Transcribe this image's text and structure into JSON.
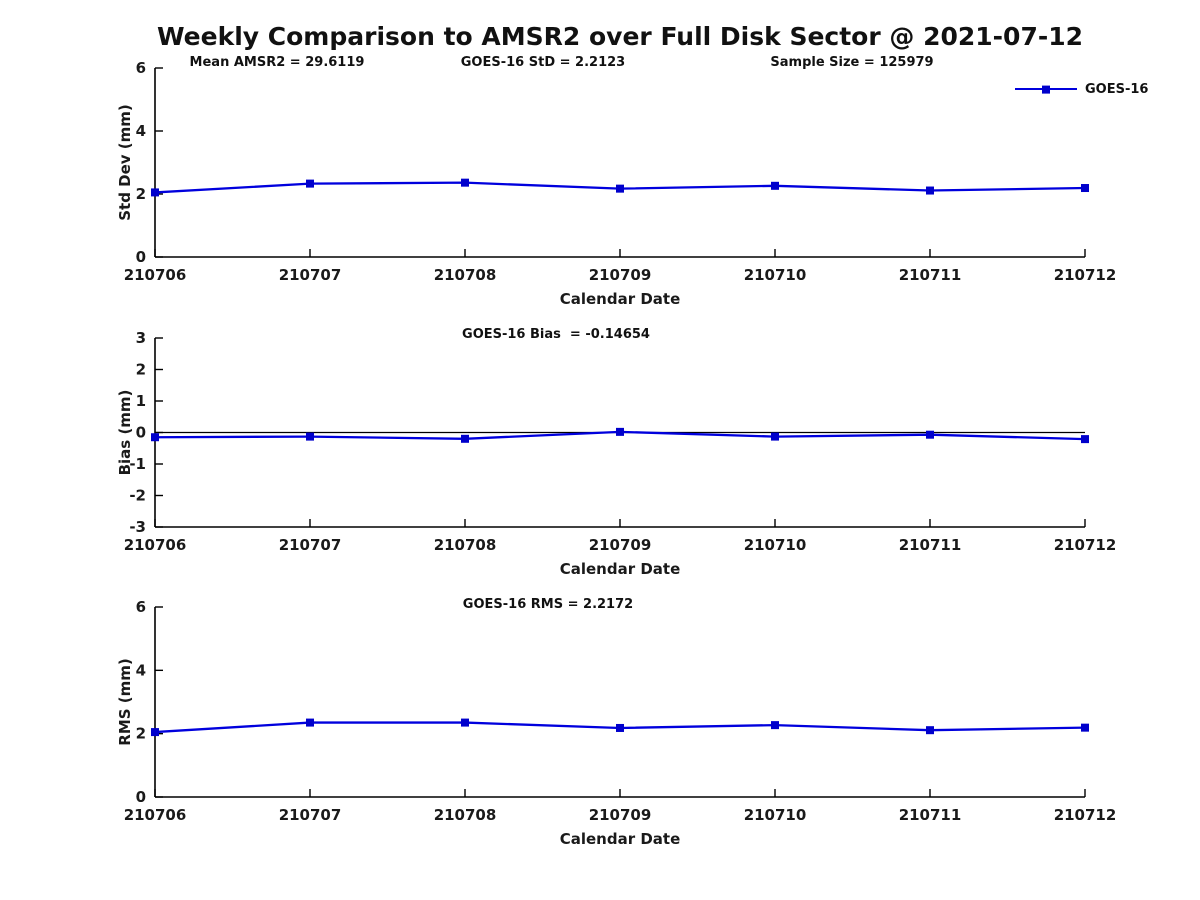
{
  "title": "Weekly Comparison to AMSR2 over Full Disk Sector @ 2021-07-12",
  "legend": {
    "label": "GOES-16",
    "position": "top-right"
  },
  "colors": {
    "line": "#0000dd",
    "marker": "#0000cc",
    "axis": "#000000",
    "zero_line": "#000000",
    "text": "#1a1a1a"
  },
  "chart_data": [
    {
      "type": "line",
      "title": "",
      "annotations": [
        "Mean AMSR2 = 29.6119",
        "GOES-16 StD = 2.2123",
        "Sample Size = 125979"
      ],
      "xlabel": "Calendar Date",
      "ylabel": "Std Dev (mm)",
      "ylim": [
        0,
        6
      ],
      "yticks": [
        0,
        2,
        4,
        6
      ],
      "categories": [
        "210706",
        "210707",
        "210708",
        "210709",
        "210710",
        "210711",
        "210712"
      ],
      "series": [
        {
          "name": "GOES-16",
          "values": [
            2.05,
            2.33,
            2.36,
            2.17,
            2.26,
            2.11,
            2.19
          ]
        }
      ],
      "legend_position": "top-right",
      "grid": false
    },
    {
      "type": "line",
      "title": "GOES-16 Bias  = -0.14654",
      "annotations": [],
      "xlabel": "Calendar Date",
      "ylabel": "Bias (mm)",
      "ylim": [
        -3,
        3
      ],
      "yticks": [
        3,
        2,
        1,
        0,
        -1,
        -2,
        -3
      ],
      "zero_line": true,
      "categories": [
        "210706",
        "210707",
        "210708",
        "210709",
        "210710",
        "210711",
        "210712"
      ],
      "series": [
        {
          "name": "GOES-16",
          "values": [
            -0.15,
            -0.13,
            -0.2,
            0.02,
            -0.13,
            -0.07,
            -0.21
          ]
        }
      ],
      "grid": false
    },
    {
      "type": "line",
      "title": "GOES-16 RMS = 2.2172",
      "annotations": [],
      "xlabel": "Calendar Date",
      "ylabel": "RMS (mm)",
      "ylim": [
        0,
        6
      ],
      "yticks": [
        0,
        2,
        4,
        6
      ],
      "categories": [
        "210706",
        "210707",
        "210708",
        "210709",
        "210710",
        "210711",
        "210712"
      ],
      "series": [
        {
          "name": "GOES-16",
          "values": [
            2.05,
            2.35,
            2.35,
            2.18,
            2.27,
            2.11,
            2.19
          ]
        }
      ],
      "grid": false
    }
  ]
}
